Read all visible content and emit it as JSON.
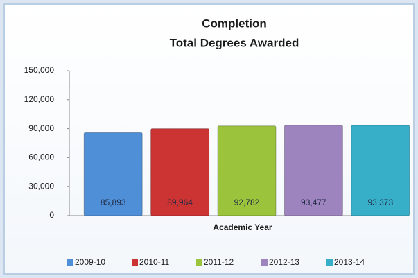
{
  "chart_data": {
    "type": "bar",
    "title": "Completion",
    "subtitle": "Total Degrees Awarded",
    "x_label": "Academic Year",
    "categories": [
      "2009-10",
      "2010-11",
      "2011-12",
      "2012-13",
      "2013-14"
    ],
    "values": [
      85893,
      89964,
      92782,
      93477,
      93373
    ],
    "value_labels": [
      "85,893",
      "89,964",
      "92,782",
      "93,477",
      "93,373"
    ],
    "colors": [
      "#4f8fd8",
      "#cc3434",
      "#9cc33c",
      "#9d84be",
      "#38afc9"
    ],
    "ylim": [
      0,
      150000
    ],
    "yticks": [
      0,
      {
        "value": 30000,
        "label": "30,000"
      },
      {
        "value": 60000,
        "label": "60,000"
      },
      {
        "value": 90000,
        "label": "90,000"
      },
      {
        "value": 120000,
        "label": "120,000"
      },
      {
        "value": 150000,
        "label": "150,000"
      }
    ],
    "grid": false,
    "legend": "bottom"
  }
}
